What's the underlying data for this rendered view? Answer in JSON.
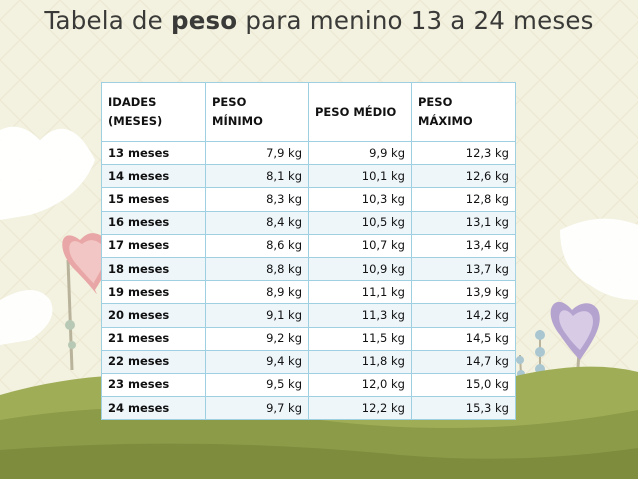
{
  "title": {
    "prefix": "Tabela de ",
    "emphasis": "peso",
    "suffix": " para menino 13 a 24 meses"
  },
  "table": {
    "headers": {
      "age_line1": "IDADES",
      "age_line2": "(MESES)",
      "min_line1": "PESO",
      "min_line2": "MÍNIMO",
      "avg": "PESO MÉDIO",
      "max_line1": "PESO",
      "max_line2": "MÁXIMO"
    },
    "rows": [
      {
        "age": "13 meses",
        "min": "7,9 kg",
        "avg": "9,9 kg",
        "max": "12,3 kg"
      },
      {
        "age": "14 meses",
        "min": "8,1 kg",
        "avg": "10,1 kg",
        "max": "12,6 kg"
      },
      {
        "age": "15 meses",
        "min": "8,3 kg",
        "avg": "10,3 kg",
        "max": "12,8 kg"
      },
      {
        "age": "16 meses",
        "min": "8,4 kg",
        "avg": "10,5 kg",
        "max": "13,1 kg"
      },
      {
        "age": "17 meses",
        "min": "8,6 kg",
        "avg": "10,7 kg",
        "max": "13,4 kg"
      },
      {
        "age": "18 meses",
        "min": "8,8 kg",
        "avg": "10,9 kg",
        "max": "13,7 kg"
      },
      {
        "age": "19 meses",
        "min": "8,9 kg",
        "avg": "11,1 kg",
        "max": "13,9 kg"
      },
      {
        "age": "20 meses",
        "min": "9,1 kg",
        "avg": "11,3 kg",
        "max": "14,2 kg"
      },
      {
        "age": "21 meses",
        "min": "9,2 kg",
        "avg": "11,5 kg",
        "max": "14,5 kg"
      },
      {
        "age": "22 meses",
        "min": "9,4 kg",
        "avg": "11,8 kg",
        "max": "14,7 kg"
      },
      {
        "age": "23 meses",
        "min": "9,5 kg",
        "avg": "12,0 kg",
        "max": "15,0 kg"
      },
      {
        "age": "24 meses",
        "min": "9,7 kg",
        "avg": "12,2 kg",
        "max": "15,3 kg"
      }
    ]
  },
  "colors": {
    "background": "#f3f1df",
    "ground": "#8c9b48",
    "table_border": "#9fd0e2",
    "title_text": "#3a3a38"
  },
  "decor_icons": [
    "cloud-icon",
    "heart-flower-pink-icon",
    "heart-flower-purple-icon",
    "grass-hill-icon"
  ]
}
